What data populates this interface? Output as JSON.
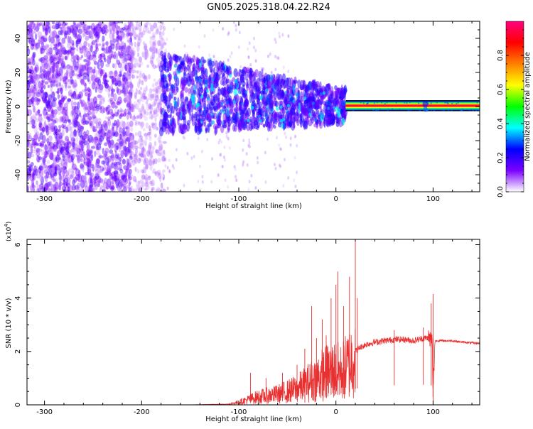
{
  "title": "GN05.2025.318.04.22.R24",
  "chart_data": [
    {
      "type": "heatmap",
      "xlabel": "Height of straight line (km)",
      "ylabel": "Frequency (Hz)",
      "xlim": [
        -318,
        148
      ],
      "ylim": [
        -50,
        50
      ],
      "xticks": [
        -300,
        -200,
        -100,
        0,
        100
      ],
      "yticks": [
        -40,
        -20,
        0,
        20,
        40
      ],
      "colorbar": {
        "label": "Normalized spectral amplitude",
        "range": [
          0,
          1
        ],
        "ticks": [
          0.0,
          0.2,
          0.4,
          0.6,
          0.8
        ],
        "colormap": [
          "#ffffff",
          "#7b00ff",
          "#0000ff",
          "#00ffff",
          "#00ff00",
          "#ffff00",
          "#ff8000",
          "#ff0000",
          "#ff0080"
        ]
      },
      "features": [
        {
          "x_range": [
            -318,
            -210
          ],
          "freq_range": [
            -50,
            50
          ],
          "amplitude": 0.1
        },
        {
          "x_range": [
            -180,
            10
          ],
          "freq_range": [
            -15,
            25
          ],
          "amplitude": 0.25
        },
        {
          "x_range": [
            10,
            148
          ],
          "freq": 0.5,
          "amplitude": 0.95
        },
        {
          "x": 92,
          "freq": 0,
          "amplitude": 0.3
        }
      ]
    },
    {
      "type": "line",
      "xlabel": "Height of straight line (km)",
      "ylabel": "SNR (10 * v/v)",
      "y_multiplier": "(x10",
      "y_multiplier_exp": "4",
      "y_multiplier_close": ")",
      "xlim": [
        -318,
        148
      ],
      "ylim": [
        0,
        6.2
      ],
      "xticks": [
        -300,
        -200,
        -100,
        0,
        100
      ],
      "yticks": [
        0,
        2,
        4,
        6
      ],
      "color": "#e83030",
      "series": [
        {
          "x": [
            -318,
            -150,
            -110,
            -100,
            -90,
            -80,
            -70,
            -60,
            -50,
            -40,
            -30,
            -20,
            -10,
            0,
            5,
            10,
            15,
            20,
            25,
            30,
            40,
            50,
            60,
            70,
            80,
            90,
            95,
            99,
            100,
            102,
            110,
            120,
            130,
            148
          ],
          "y": [
            0.0,
            0.0,
            0.03,
            0.1,
            0.2,
            0.3,
            0.35,
            0.4,
            0.5,
            0.6,
            0.8,
            1.0,
            1.2,
            1.3,
            1.2,
            1.4,
            1.6,
            2.0,
            2.15,
            2.25,
            2.35,
            2.4,
            2.45,
            2.45,
            2.4,
            2.5,
            2.5,
            2.4,
            0.5,
            2.4,
            2.4,
            2.4,
            2.35,
            2.3
          ]
        }
      ],
      "spikes": [
        {
          "x": -88,
          "y": 1.2
        },
        {
          "x": -72,
          "y": 1.0
        },
        {
          "x": -55,
          "y": 1.2
        },
        {
          "x": -40,
          "y": 1.5
        },
        {
          "x": -32,
          "y": 2.1
        },
        {
          "x": -25,
          "y": 3.7
        },
        {
          "x": -20,
          "y": 2.5
        },
        {
          "x": -14,
          "y": 3.2
        },
        {
          "x": -10,
          "y": 2.6
        },
        {
          "x": -5,
          "y": 4.0
        },
        {
          "x": 0,
          "y": 4.5
        },
        {
          "x": 2,
          "y": 5.0
        },
        {
          "x": 8,
          "y": 3.7
        },
        {
          "x": 14,
          "y": 4.8
        },
        {
          "x": 20,
          "y": 6.2
        },
        {
          "x": 22,
          "y": 4.0
        },
        {
          "x": 60,
          "y": 2.8
        },
        {
          "x": 90,
          "y": 2.9
        },
        {
          "x": 98,
          "y": 3.8
        },
        {
          "x": 100,
          "y": 4.15
        }
      ]
    }
  ]
}
